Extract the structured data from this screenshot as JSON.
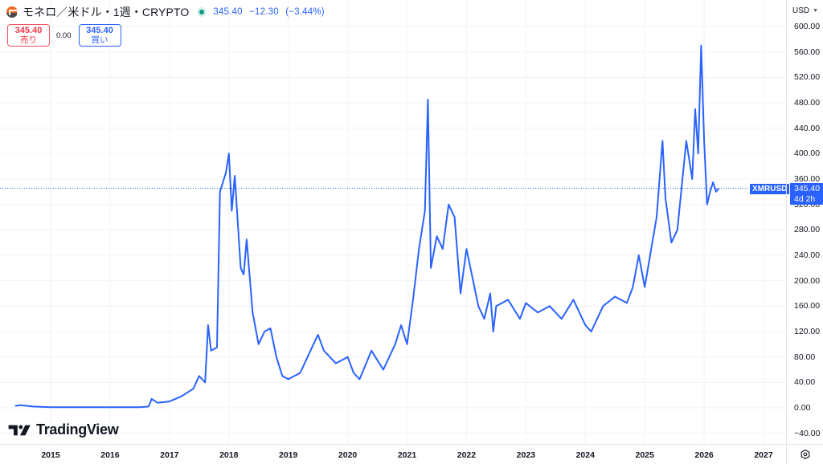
{
  "header": {
    "symbol_title": "モネロ／米ドル・1週・CRYPTO",
    "last_price": "345.40",
    "change": "−12.30",
    "change_pct": "(−3.44%)",
    "market_status": "open"
  },
  "trade": {
    "sell_price": "345.40",
    "sell_label": "売り",
    "spread": "0.00",
    "buy_price": "345.40",
    "buy_label": "買い"
  },
  "watermark": {
    "text": "TradingView"
  },
  "price_axis": {
    "currency": "USD",
    "ticks": [
      "600.00",
      "560.00",
      "520.00",
      "480.00",
      "440.00",
      "400.00",
      "360.00",
      "320.00",
      "280.00",
      "240.00",
      "200.00",
      "160.00",
      "120.00",
      "80.00",
      "40.00",
      "0.00",
      "−40.00"
    ]
  },
  "time_axis": {
    "ticks": [
      "2015",
      "2016",
      "2017",
      "2018",
      "2019",
      "2020",
      "2021",
      "2022",
      "2023",
      "2024",
      "2025",
      "2026",
      "2027"
    ]
  },
  "current_price_label": {
    "symbol": "XMRUSD",
    "price": "345.40",
    "countdown": "4d 2h"
  },
  "colors": {
    "line": "#2962ff",
    "sell": "#f23645",
    "buy": "#2962ff",
    "grid": "#f0f3fa"
  },
  "chart_data": {
    "type": "line",
    "title": "モネロ／米ドル・1週・CRYPTO",
    "series": [
      {
        "name": "XMRUSD",
        "x": [
          2014.4,
          2014.5,
          2014.7,
          2015.0,
          2015.5,
          2016.0,
          2016.5,
          2016.65,
          2016.7,
          2016.8,
          2017.0,
          2017.2,
          2017.4,
          2017.5,
          2017.6,
          2017.65,
          2017.7,
          2017.8,
          2017.85,
          2017.95,
          2018.0,
          2018.05,
          2018.1,
          2018.2,
          2018.25,
          2018.3,
          2018.4,
          2018.5,
          2018.6,
          2018.7,
          2018.8,
          2018.9,
          2019.0,
          2019.2,
          2019.4,
          2019.5,
          2019.6,
          2019.8,
          2020.0,
          2020.1,
          2020.2,
          2020.4,
          2020.6,
          2020.8,
          2020.9,
          2021.0,
          2021.1,
          2021.2,
          2021.3,
          2021.35,
          2021.4,
          2021.5,
          2021.6,
          2021.7,
          2021.8,
          2021.9,
          2022.0,
          2022.2,
          2022.3,
          2022.4,
          2022.45,
          2022.5,
          2022.7,
          2022.9,
          2023.0,
          2023.2,
          2023.4,
          2023.6,
          2023.8,
          2024.0,
          2024.1,
          2024.3,
          2024.5,
          2024.7,
          2024.8,
          2024.9,
          2025.0,
          2025.2,
          2025.3,
          2025.35,
          2025.45,
          2025.55,
          2025.7,
          2025.8,
          2025.85,
          2025.9,
          2025.95,
          2026.0,
          2026.05,
          2026.1,
          2026.15,
          2026.2,
          2026.25
        ],
        "values": [
          3,
          4,
          2,
          1,
          1,
          1,
          1,
          2,
          14,
          8,
          10,
          18,
          30,
          50,
          40,
          130,
          90,
          95,
          340,
          370,
          400,
          310,
          365,
          220,
          210,
          265,
          150,
          100,
          120,
          125,
          80,
          50,
          45,
          55,
          95,
          115,
          90,
          70,
          80,
          55,
          45,
          90,
          60,
          100,
          130,
          100,
          170,
          250,
          310,
          485,
          220,
          270,
          250,
          320,
          300,
          180,
          250,
          160,
          140,
          180,
          120,
          160,
          170,
          140,
          165,
          150,
          160,
          140,
          170,
          130,
          120,
          160,
          175,
          165,
          190,
          240,
          190,
          300,
          420,
          330,
          260,
          280,
          420,
          360,
          470,
          400,
          570,
          420,
          320,
          340,
          355,
          340,
          345.4
        ]
      }
    ],
    "xlabel": "",
    "ylabel": "USD",
    "x_tick_labels": [
      "2015",
      "2016",
      "2017",
      "2018",
      "2019",
      "2020",
      "2021",
      "2022",
      "2023",
      "2024",
      "2025",
      "2026",
      "2027"
    ],
    "y_tick_labels": [
      "600.00",
      "560.00",
      "520.00",
      "480.00",
      "440.00",
      "400.00",
      "360.00",
      "320.00",
      "280.00",
      "240.00",
      "200.00",
      "160.00",
      "120.00",
      "80.00",
      "40.00",
      "0.00",
      "−40.00"
    ],
    "ylim": [
      -45,
      615
    ],
    "xlim": [
      2014.3,
      2027.4
    ],
    "grid": true,
    "legend": "none",
    "last_value_label": "345.40"
  }
}
